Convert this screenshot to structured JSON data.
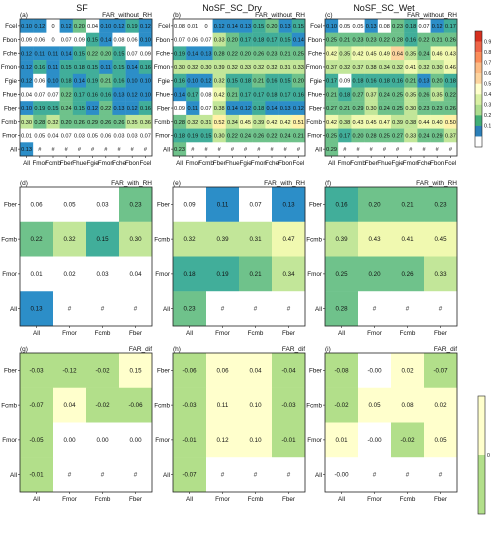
{
  "column_titles": [
    "SF",
    "NoSF_SC_Dry",
    "NoSF_SC_Wet"
  ],
  "colorbar_top": {
    "ticks": [
      "0.9",
      "0.8",
      "0.7",
      "0.6",
      "0.5",
      "0.4",
      "0.3",
      "0.2",
      "0.1"
    ],
    "colors": [
      "#d7301f",
      "#ef6548",
      "#fc8d59",
      "#fdbb84",
      "#fdd49e",
      "#ffffcc",
      "#d9f0a3",
      "#addd8e",
      "#41ae76",
      "#2c7fb8",
      "#ffffff"
    ]
  },
  "colorbar_bottom": {
    "ticks": [
      "0"
    ],
    "color_pos": "#ffffcc",
    "color_neg": "#b2df8a"
  },
  "chart_data": [
    {
      "type": "heatmap",
      "label": "(a)",
      "title": "FAR_without_RH",
      "y": [
        "Fcel",
        "Fbon",
        "Fche",
        "Fmon",
        "Fgie",
        "Fhue",
        "Fber",
        "Fcmb",
        "Fmor",
        "All"
      ],
      "x": [
        "All",
        "Fmor",
        "Fcmb",
        "Fber",
        "Fhue",
        "Fgie",
        "Fmon",
        "Fche",
        "Fbon",
        "Fcel"
      ],
      "cells": [
        [
          "0.10",
          "0.12",
          "0",
          "0.12",
          "0.20",
          "0.04",
          "0.10",
          "0.12",
          "0.19",
          "0.12"
        ],
        [
          "0.09",
          "0.06",
          "0",
          "0.07",
          "0.09",
          "0.15",
          "0.14",
          "0.08",
          "0.06",
          "0.10"
        ],
        [
          "0.12",
          "0.11",
          "0.11",
          "0.14",
          "0.15",
          "0.22",
          "0.20",
          "0.15",
          "0.07",
          "0.09"
        ],
        [
          "0.12",
          "0.16",
          "0.11",
          "0.15",
          "0.18",
          "0.15",
          "0.11",
          "0.15",
          "0.14",
          "0.16"
        ],
        [
          "0.12",
          "0.06",
          "0.10",
          "0.18",
          "0.14",
          "0.19",
          "0.21",
          "0.16",
          "0.10",
          "0.10"
        ],
        [
          "0.04",
          "0.07",
          "0.07",
          "0.22",
          "0.17",
          "0.16",
          "0.16",
          "0.13",
          "0.12",
          "0.10"
        ],
        [
          "0.10",
          "0.19",
          "0.15",
          "0.24",
          "0.15",
          "0.12",
          "0.22",
          "0.13",
          "0.12",
          "0.16"
        ],
        [
          "0.30",
          "0.28",
          "0.32",
          "0.20",
          "0.26",
          "0.29",
          "0.26",
          "0.26",
          "0.35",
          "0.36"
        ],
        [
          "0.01",
          "0.05",
          "0.04",
          "0.07",
          "0.03",
          "0.05",
          "0.06",
          "0.03",
          "0.03",
          "0.07"
        ],
        [
          "0.13",
          "#",
          "#",
          "#",
          "#",
          "#",
          "#",
          "#",
          "#",
          "#"
        ]
      ]
    },
    {
      "type": "heatmap",
      "label": "(b)",
      "title": "FAR_without_RH",
      "y": [
        "Fcel",
        "Fbon",
        "Fche",
        "Fmon",
        "Fgie",
        "Fhue",
        "Fber",
        "Fcmb",
        "Fmor",
        "All"
      ],
      "x": [
        "All",
        "Fmor",
        "Fcmb",
        "Fber",
        "Fhue",
        "Fgie",
        "Fmon",
        "Fche",
        "Fbon",
        "Fcel"
      ],
      "cells": [
        [
          "0.08",
          "0.01",
          "0",
          "0.12",
          "0.14",
          "0.13",
          "0.15",
          "0.20",
          "0.13",
          "0.15"
        ],
        [
          "0.07",
          "0.06",
          "0.07",
          "0.33",
          "0.20",
          "0.17",
          "0.18",
          "0.17",
          "0.15",
          "0.14"
        ],
        [
          "0.19",
          "0.14",
          "0.13",
          "0.28",
          "0.22",
          "0.20",
          "0.26",
          "0.23",
          "0.21",
          "0.25"
        ],
        [
          "0.30",
          "0.32",
          "0.30",
          "0.39",
          "0.32",
          "0.33",
          "0.32",
          "0.32",
          "0.31",
          "0.33"
        ],
        [
          "0.16",
          "0.10",
          "0.12",
          "0.32",
          "0.15",
          "0.18",
          "0.21",
          "0.16",
          "0.15",
          "0.20"
        ],
        [
          "0.14",
          "0.17",
          "0.08",
          "0.42",
          "0.21",
          "0.17",
          "0.17",
          "0.18",
          "0.17",
          "0.16"
        ],
        [
          "0.09",
          "0.11",
          "0.07",
          "0.38",
          "0.14",
          "0.12",
          "0.18",
          "0.14",
          "0.13",
          "0.12"
        ],
        [
          "0.28",
          "0.32",
          "0.31",
          "0.52",
          "0.34",
          "0.45",
          "0.39",
          "0.42",
          "0.42",
          "0.51"
        ],
        [
          "0.18",
          "0.19",
          "0.15",
          "0.30",
          "0.22",
          "0.24",
          "0.26",
          "0.22",
          "0.24",
          "0.21"
        ],
        [
          "0.23",
          "#",
          "#",
          "#",
          "#",
          "#",
          "#",
          "#",
          "#",
          "#"
        ]
      ]
    },
    {
      "type": "heatmap",
      "label": "(c)",
      "title": "FAR_without_RH",
      "y": [
        "Fcel",
        "Fbon",
        "Fche",
        "Fmon",
        "Fgie",
        "Fhue",
        "Fber",
        "Fcmb",
        "Fmor",
        "All"
      ],
      "x": [
        "All",
        "Fmor",
        "Fcmb",
        "Fber",
        "Fhue",
        "Fgie",
        "Fmon",
        "Fche",
        "Fbon",
        "Fcel"
      ],
      "cells": [
        [
          "0.10",
          "0.05",
          "0.05",
          "0.13",
          "0.08",
          "0.23",
          "0.18",
          "0.07",
          "0.12",
          "0.17"
        ],
        [
          "0.25",
          "0.21",
          "0.23",
          "0.23",
          "0.22",
          "0.28",
          "0.16",
          "0.22",
          "0.21",
          "0.26"
        ],
        [
          "0.42",
          "0.35",
          "0.42",
          "0.45",
          "0.49",
          "0.64",
          "0.35",
          "0.24",
          "0.46",
          "0.43"
        ],
        [
          "0.37",
          "0.32",
          "0.37",
          "0.38",
          "0.34",
          "0.32",
          "0.41",
          "0.32",
          "0.30",
          "0.46"
        ],
        [
          "0.17",
          "0.09",
          "0.18",
          "0.16",
          "0.18",
          "0.16",
          "0.21",
          "0.13",
          "0.20",
          "0.18"
        ],
        [
          "0.21",
          "0.18",
          "0.27",
          "0.37",
          "0.24",
          "0.25",
          "0.35",
          "0.26",
          "0.35",
          "0.22"
        ],
        [
          "0.27",
          "0.21",
          "0.29",
          "0.30",
          "0.24",
          "0.25",
          "0.30",
          "0.23",
          "0.23",
          "0.26"
        ],
        [
          "0.42",
          "0.38",
          "0.43",
          "0.45",
          "0.47",
          "0.39",
          "0.38",
          "0.44",
          "0.40",
          "0.50"
        ],
        [
          "0.25",
          "0.17",
          "0.20",
          "0.28",
          "0.25",
          "0.27",
          "0.33",
          "0.24",
          "0.29",
          "0.37"
        ],
        [
          "0.29",
          "#",
          "#",
          "#",
          "#",
          "#",
          "#",
          "#",
          "#",
          "#"
        ]
      ]
    },
    {
      "type": "heatmap",
      "label": "(d)",
      "title": "FAR_with_RH",
      "y": [
        "Fber",
        "Fcmb",
        "Fmor",
        "All"
      ],
      "x": [
        "All",
        "Fmor",
        "Fcmb",
        "Fber"
      ],
      "cells": [
        [
          "0.06",
          "0.05",
          "0.03",
          "0.23"
        ],
        [
          "0.22",
          "0.32",
          "0.15",
          "0.30"
        ],
        [
          "0.01",
          "0.02",
          "0.03",
          "0.04"
        ],
        [
          "0.13",
          "#",
          "#",
          "#"
        ]
      ]
    },
    {
      "type": "heatmap",
      "label": "(e)",
      "title": "FAR_with_RH",
      "y": [
        "Fber",
        "Fcmb",
        "Fmor",
        "All"
      ],
      "x": [
        "All",
        "Fmor",
        "Fcmb",
        "Fber"
      ],
      "cells": [
        [
          "0.09",
          "0.11",
          "0.07",
          "0.13"
        ],
        [
          "0.32",
          "0.39",
          "0.31",
          "0.47"
        ],
        [
          "0.18",
          "0.19",
          "0.21",
          "0.34"
        ],
        [
          "0.23",
          "#",
          "#",
          "#"
        ]
      ]
    },
    {
      "type": "heatmap",
      "label": "(f)",
      "title": "FAR_with_RH",
      "y": [
        "Fber",
        "Fcmb",
        "Fmor",
        "All"
      ],
      "x": [
        "All",
        "Fmor",
        "Fcmb",
        "Fber"
      ],
      "cells": [
        [
          "0.16",
          "0.20",
          "0.21",
          "0.23"
        ],
        [
          "0.39",
          "0.43",
          "0.41",
          "0.45"
        ],
        [
          "0.25",
          "0.20",
          "0.26",
          "0.33"
        ],
        [
          "0.28",
          "#",
          "#",
          "#"
        ]
      ]
    },
    {
      "type": "heatmap",
      "label": "(g)",
      "title": "FAR_dif",
      "y": [
        "Fber",
        "Fcmb",
        "Fmor",
        "All"
      ],
      "x": [
        "All",
        "Fmor",
        "Fcmb",
        "Fber"
      ],
      "cells": [
        [
          "-0.03",
          "-0.12",
          "-0.02",
          "0.15"
        ],
        [
          "-0.07",
          "0.04",
          "-0.02",
          "-0.06"
        ],
        [
          "-0.05",
          "0.00",
          "0.00",
          "0.00"
        ],
        [
          "-0.01",
          "#",
          "#",
          "#"
        ]
      ]
    },
    {
      "type": "heatmap",
      "label": "(h)",
      "title": "FAR_dif",
      "y": [
        "Fber",
        "Fcmb",
        "Fmor",
        "All"
      ],
      "x": [
        "All",
        "Fmor",
        "Fcmb",
        "Fber"
      ],
      "cells": [
        [
          "-0.06",
          "0.06",
          "0.04",
          "-0.04"
        ],
        [
          "-0.03",
          "0.11",
          "0.10",
          "-0.03"
        ],
        [
          "-0.01",
          "0.12",
          "0.10",
          "-0.01"
        ],
        [
          "-0.07",
          "#",
          "#",
          "#"
        ]
      ]
    },
    {
      "type": "heatmap",
      "label": "(i)",
      "title": "FAR_dif",
      "y": [
        "Fber",
        "Fcmb",
        "Fmor",
        "All"
      ],
      "x": [
        "All",
        "Fmor",
        "Fcmb",
        "Fber"
      ],
      "cells": [
        [
          "-0.08",
          "-0.00",
          "0.02",
          "-0.07"
        ],
        [
          "-0.02",
          "0.05",
          "0.08",
          "0.02"
        ],
        [
          "0.01",
          "-0.00",
          "-0.02",
          "0.05"
        ],
        [
          "-0.00",
          "#",
          "#",
          "#"
        ]
      ]
    }
  ]
}
